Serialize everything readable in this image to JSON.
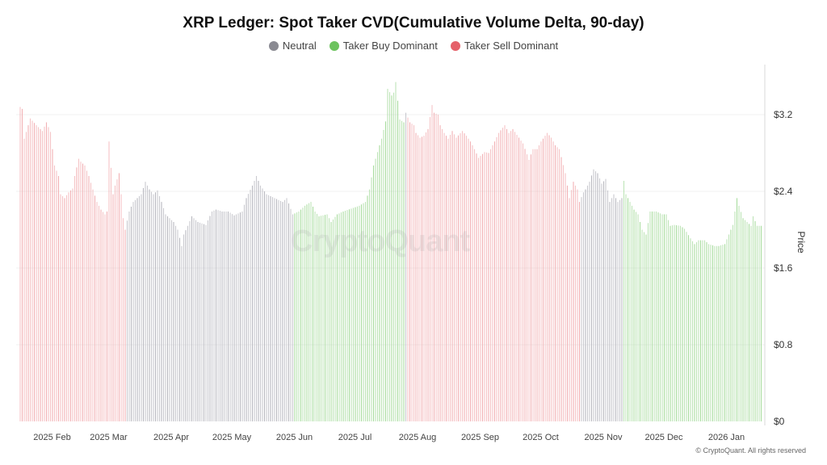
{
  "chart_data": {
    "type": "bar",
    "title": "XRP Ledger: Spot Taker CVD(Cumulative Volume Delta, 90-day)",
    "ylabel": "Price",
    "ylim": [
      0,
      3.6
    ],
    "y_ticks": [
      "$0",
      "$0.8",
      "$1.6",
      "$2.4",
      "$3.2"
    ],
    "y_tick_values": [
      0,
      0.8,
      1.6,
      2.4,
      3.2
    ],
    "x_range": [
      "2025-01-17",
      "2026-01-19"
    ],
    "x_ticks": [
      {
        "label": "2025 Feb",
        "date": "2025-02-01"
      },
      {
        "label": "2025 Mar",
        "date": "2025-03-01"
      },
      {
        "label": "2025 Apr",
        "date": "2025-04-01"
      },
      {
        "label": "2025 May",
        "date": "2025-05-01"
      },
      {
        "label": "2025 Jun",
        "date": "2025-06-01"
      },
      {
        "label": "2025 Jul",
        "date": "2025-07-01"
      },
      {
        "label": "2025 Aug",
        "date": "2025-08-01"
      },
      {
        "label": "2025 Sep",
        "date": "2025-09-01"
      },
      {
        "label": "2025 Oct",
        "date": "2025-10-01"
      },
      {
        "label": "2025 Nov",
        "date": "2025-11-01"
      },
      {
        "label": "2025 Dec",
        "date": "2025-12-01"
      },
      {
        "label": "2026 Jan",
        "date": "2026-01-01"
      }
    ],
    "grid": "horizontal, faint",
    "legend_position": "top-center",
    "legend": [
      {
        "name": "Neutral",
        "color": "#8a8a92"
      },
      {
        "name": "Taker Buy Dominant",
        "color": "#6cc35e"
      },
      {
        "name": "Taker Sell Dominant",
        "color": "#e5616a"
      }
    ],
    "bar_colors": {
      "Neutral": "#b9b9c0",
      "Taker Buy Dominant": "#a9dc9f",
      "Taker Sell Dominant": "#f2b1b4"
    },
    "regimes": [
      {
        "from": "2025-01-17",
        "to": "2025-03-10",
        "state": "Taker Sell Dominant"
      },
      {
        "from": "2025-03-11",
        "to": "2025-06-01",
        "state": "Neutral"
      },
      {
        "from": "2025-06-02",
        "to": "2025-07-26",
        "state": "Taker Buy Dominant"
      },
      {
        "from": "2025-07-27",
        "to": "2025-07-27",
        "state": "Neutral"
      },
      {
        "from": "2025-07-28",
        "to": "2025-10-21",
        "state": "Taker Sell Dominant"
      },
      {
        "from": "2025-10-22",
        "to": "2025-11-11",
        "state": "Neutral"
      },
      {
        "from": "2025-11-12",
        "to": "2026-01-19",
        "state": "Taker Buy Dominant"
      }
    ],
    "price_points": [
      [
        "2025-01-17",
        3.28
      ],
      [
        "2025-01-18",
        3.26
      ],
      [
        "2025-01-19",
        2.95
      ],
      [
        "2025-01-21",
        3.09
      ],
      [
        "2025-01-22",
        3.16
      ],
      [
        "2025-01-25",
        3.09
      ],
      [
        "2025-01-28",
        3.03
      ],
      [
        "2025-01-30",
        3.12
      ],
      [
        "2025-02-01",
        3.02
      ],
      [
        "2025-02-02",
        2.84
      ],
      [
        "2025-02-03",
        2.67
      ],
      [
        "2025-02-05",
        2.56
      ],
      [
        "2025-02-06",
        2.37
      ],
      [
        "2025-02-08",
        2.33
      ],
      [
        "2025-02-10",
        2.39
      ],
      [
        "2025-02-12",
        2.43
      ],
      [
        "2025-02-13",
        2.56
      ],
      [
        "2025-02-15",
        2.74
      ],
      [
        "2025-02-16",
        2.71
      ],
      [
        "2025-02-18",
        2.67
      ],
      [
        "2025-02-20",
        2.56
      ],
      [
        "2025-02-22",
        2.42
      ],
      [
        "2025-02-24",
        2.29
      ],
      [
        "2025-02-26",
        2.21
      ],
      [
        "2025-02-28",
        2.16
      ],
      [
        "2025-03-01",
        2.19
      ],
      [
        "2025-03-02",
        2.92
      ],
      [
        "2025-03-04",
        2.37
      ],
      [
        "2025-03-05",
        2.46
      ],
      [
        "2025-03-07",
        2.59
      ],
      [
        "2025-03-08",
        2.37
      ],
      [
        "2025-03-09",
        2.12
      ],
      [
        "2025-03-10",
        2.0
      ],
      [
        "2025-03-12",
        2.19
      ],
      [
        "2025-03-14",
        2.29
      ],
      [
        "2025-03-16",
        2.33
      ],
      [
        "2025-03-18",
        2.37
      ],
      [
        "2025-03-20",
        2.5
      ],
      [
        "2025-03-22",
        2.42
      ],
      [
        "2025-03-24",
        2.37
      ],
      [
        "2025-03-26",
        2.41
      ],
      [
        "2025-03-28",
        2.29
      ],
      [
        "2025-03-30",
        2.16
      ],
      [
        "2025-04-01",
        2.12
      ],
      [
        "2025-04-03",
        2.08
      ],
      [
        "2025-04-05",
        2.0
      ],
      [
        "2025-04-07",
        1.83
      ],
      [
        "2025-04-08",
        1.95
      ],
      [
        "2025-04-10",
        2.04
      ],
      [
        "2025-04-12",
        2.14
      ],
      [
        "2025-04-15",
        2.08
      ],
      [
        "2025-04-19",
        2.05
      ],
      [
        "2025-04-22",
        2.19
      ],
      [
        "2025-04-24",
        2.21
      ],
      [
        "2025-04-27",
        2.19
      ],
      [
        "2025-04-30",
        2.19
      ],
      [
        "2025-05-03",
        2.15
      ],
      [
        "2025-05-07",
        2.19
      ],
      [
        "2025-05-09",
        2.33
      ],
      [
        "2025-05-12",
        2.46
      ],
      [
        "2025-05-14",
        2.56
      ],
      [
        "2025-05-16",
        2.46
      ],
      [
        "2025-05-19",
        2.37
      ],
      [
        "2025-05-23",
        2.33
      ],
      [
        "2025-05-27",
        2.29
      ],
      [
        "2025-05-29",
        2.33
      ],
      [
        "2025-06-01",
        2.16
      ],
      [
        "2025-06-04",
        2.19
      ],
      [
        "2025-06-07",
        2.25
      ],
      [
        "2025-06-10",
        2.29
      ],
      [
        "2025-06-12",
        2.19
      ],
      [
        "2025-06-14",
        2.14
      ],
      [
        "2025-06-18",
        2.16
      ],
      [
        "2025-06-20",
        2.08
      ],
      [
        "2025-06-23",
        2.16
      ],
      [
        "2025-06-26",
        2.19
      ],
      [
        "2025-06-30",
        2.22
      ],
      [
        "2025-07-04",
        2.25
      ],
      [
        "2025-07-07",
        2.29
      ],
      [
        "2025-07-09",
        2.42
      ],
      [
        "2025-07-11",
        2.67
      ],
      [
        "2025-07-13",
        2.81
      ],
      [
        "2025-07-15",
        2.95
      ],
      [
        "2025-07-17",
        3.13
      ],
      [
        "2025-07-18",
        3.47
      ],
      [
        "2025-07-20",
        3.4
      ],
      [
        "2025-07-21",
        3.43
      ],
      [
        "2025-07-22",
        3.54
      ],
      [
        "2025-07-24",
        3.15
      ],
      [
        "2025-07-26",
        3.12
      ],
      [
        "2025-07-27",
        3.22
      ],
      [
        "2025-07-29",
        3.12
      ],
      [
        "2025-07-31",
        3.09
      ],
      [
        "2025-08-01",
        3.01
      ],
      [
        "2025-08-03",
        2.96
      ],
      [
        "2025-08-05",
        2.98
      ],
      [
        "2025-08-07",
        3.05
      ],
      [
        "2025-08-09",
        3.3
      ],
      [
        "2025-08-10",
        3.22
      ],
      [
        "2025-08-12",
        3.2
      ],
      [
        "2025-08-13",
        3.09
      ],
      [
        "2025-08-15",
        3.01
      ],
      [
        "2025-08-17",
        2.95
      ],
      [
        "2025-08-19",
        3.03
      ],
      [
        "2025-08-21",
        2.96
      ],
      [
        "2025-08-24",
        3.03
      ],
      [
        "2025-08-26",
        2.98
      ],
      [
        "2025-08-28",
        2.92
      ],
      [
        "2025-08-30",
        2.84
      ],
      [
        "2025-09-01",
        2.75
      ],
      [
        "2025-09-04",
        2.81
      ],
      [
        "2025-09-06",
        2.8
      ],
      [
        "2025-09-09",
        2.92
      ],
      [
        "2025-09-11",
        3.01
      ],
      [
        "2025-09-14",
        3.09
      ],
      [
        "2025-09-16",
        3.01
      ],
      [
        "2025-09-18",
        3.05
      ],
      [
        "2025-09-21",
        2.96
      ],
      [
        "2025-09-23",
        2.9
      ],
      [
        "2025-09-26",
        2.73
      ],
      [
        "2025-09-28",
        2.84
      ],
      [
        "2025-09-30",
        2.84
      ],
      [
        "2025-10-02",
        2.92
      ],
      [
        "2025-10-05",
        3.01
      ],
      [
        "2025-10-07",
        2.96
      ],
      [
        "2025-10-09",
        2.88
      ],
      [
        "2025-10-11",
        2.84
      ],
      [
        "2025-10-14",
        2.59
      ],
      [
        "2025-10-16",
        2.33
      ],
      [
        "2025-10-18",
        2.5
      ],
      [
        "2025-10-20",
        2.42
      ],
      [
        "2025-10-21",
        2.29
      ],
      [
        "2025-10-23",
        2.39
      ],
      [
        "2025-10-24",
        2.42
      ],
      [
        "2025-10-26",
        2.5
      ],
      [
        "2025-10-28",
        2.63
      ],
      [
        "2025-10-30",
        2.59
      ],
      [
        "2025-11-01",
        2.48
      ],
      [
        "2025-11-03",
        2.53
      ],
      [
        "2025-11-05",
        2.29
      ],
      [
        "2025-11-07",
        2.37
      ],
      [
        "2025-11-09",
        2.29
      ],
      [
        "2025-11-11",
        2.33
      ],
      [
        "2025-11-12",
        2.51
      ],
      [
        "2025-11-13",
        2.37
      ],
      [
        "2025-11-15",
        2.29
      ],
      [
        "2025-11-17",
        2.21
      ],
      [
        "2025-11-19",
        2.16
      ],
      [
        "2025-11-21",
        2.0
      ],
      [
        "2025-11-23",
        1.95
      ],
      [
        "2025-11-25",
        2.19
      ],
      [
        "2025-11-28",
        2.19
      ],
      [
        "2025-12-01",
        2.16
      ],
      [
        "2025-12-03",
        2.16
      ],
      [
        "2025-12-05",
        2.04
      ],
      [
        "2025-12-07",
        2.05
      ],
      [
        "2025-12-10",
        2.04
      ],
      [
        "2025-12-12",
        2.01
      ],
      [
        "2025-12-15",
        1.91
      ],
      [
        "2025-12-17",
        1.85
      ],
      [
        "2025-12-19",
        1.89
      ],
      [
        "2025-12-22",
        1.89
      ],
      [
        "2025-12-24",
        1.85
      ],
      [
        "2025-12-27",
        1.83
      ],
      [
        "2025-12-29",
        1.83
      ],
      [
        "2026-01-01",
        1.85
      ],
      [
        "2026-01-03",
        1.95
      ],
      [
        "2026-01-05",
        2.05
      ],
      [
        "2026-01-07",
        2.33
      ],
      [
        "2026-01-08",
        2.25
      ],
      [
        "2026-01-10",
        2.12
      ],
      [
        "2026-01-12",
        2.08
      ],
      [
        "2026-01-14",
        2.04
      ],
      [
        "2026-01-15",
        2.14
      ],
      [
        "2026-01-17",
        2.04
      ],
      [
        "2026-01-19",
        2.04
      ]
    ]
  },
  "watermark": "CryptoQuant",
  "footer": {
    "copyright": "© CryptoQuant. All rights reserved"
  }
}
